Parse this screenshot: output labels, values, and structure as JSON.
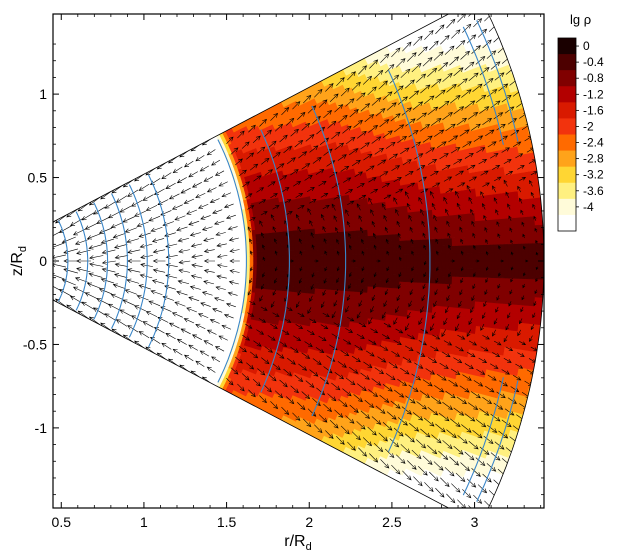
{
  "chart_data": {
    "type": "heatmap",
    "title": "",
    "xlabel": "r/R",
    "xlabel_sub": "d",
    "ylabel": "z/R",
    "ylabel_sub": "d",
    "xlim": [
      0.45,
      3.42
    ],
    "ylim": [
      -1.48,
      1.48
    ],
    "xticks": [
      0.5,
      1,
      1.5,
      2,
      2.5,
      3
    ],
    "xtick_labels": [
      "0.5",
      "1",
      "1.5",
      "2",
      "2.5",
      "3"
    ],
    "yticks": [
      -1,
      -0.5,
      0,
      0.5,
      1
    ],
    "ytick_labels": [
      "-1",
      "-0.5",
      "0",
      "0.5",
      "1"
    ],
    "grid": false,
    "domain": {
      "shape": "annular wedge",
      "r_inner": 0.32,
      "r_outer": 3.42,
      "half_opening_angle_deg": 27.5
    },
    "colorbar": {
      "title": "lg ρ",
      "levels": [
        0,
        -0.4,
        -0.8,
        -1.2,
        -1.6,
        -2,
        -2.4,
        -2.8,
        -3.2,
        -3.6,
        -4
      ],
      "level_labels": [
        "0",
        "-0.4",
        "-0.8",
        "-1.2",
        "-1.6",
        "-2",
        "-2.4",
        "-2.8",
        "-3.2",
        "-3.6",
        "-4"
      ],
      "colors": [
        "#1a0000",
        "#4d0000",
        "#800000",
        "#b30000",
        "#d91a00",
        "#f2330d",
        "#ff6a00",
        "#ffa31a",
        "#ffd633",
        "#fff080",
        "#fffbd9",
        "#ffffff"
      ]
    },
    "density_structure": {
      "disk_inner_edge_r": 1.62,
      "midplane_density": "0 to -0.4",
      "disk_surface_density": "-4"
    },
    "streamlines": {
      "series_name": "",
      "color": "#3a86c8",
      "arc_radii": [
        0.42,
        0.54,
        0.66,
        0.78,
        0.9,
        1.02,
        1.15,
        1.62,
        1.88,
        2.22,
        2.73
      ],
      "outer_arc_radii": [
        3.25,
        3.34
      ]
    },
    "velocity_vectors": {
      "color": "#000000",
      "description": "inflow arrows pointing toward the origin inside the cavity, outflow arrows in the low-density wind region"
    }
  }
}
